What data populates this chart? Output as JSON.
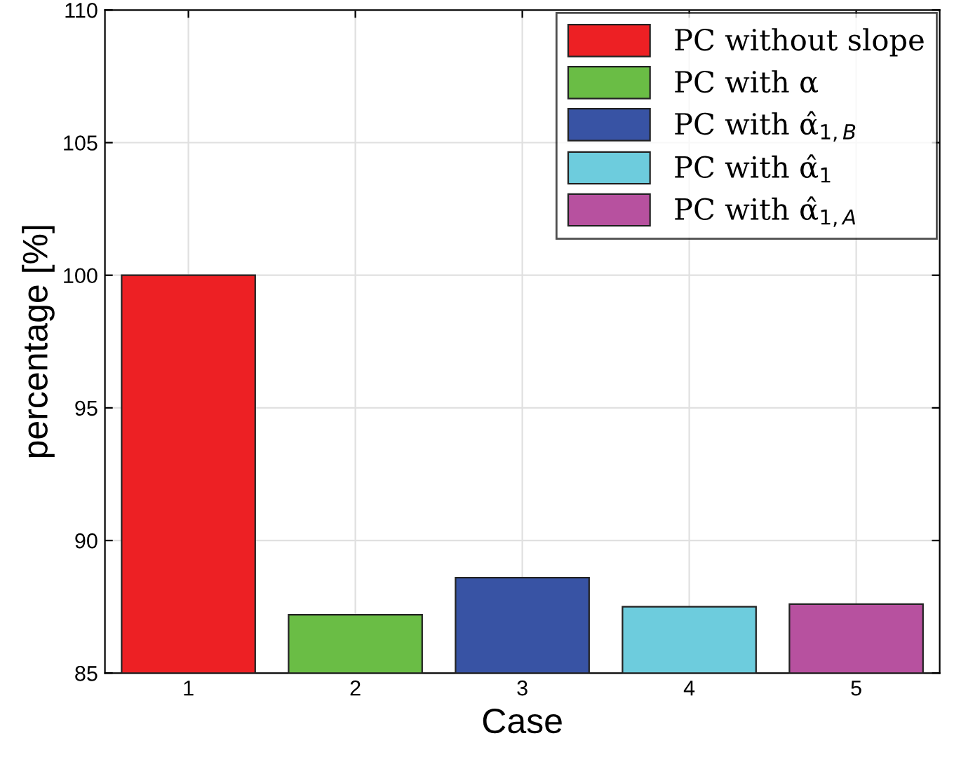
{
  "chart_data": {
    "type": "bar",
    "xlabel": "Case",
    "ylabel": "percentage [%]",
    "categories": [
      "1",
      "2",
      "3",
      "4",
      "5"
    ],
    "series": [
      {
        "name": "PC without slope",
        "color": "#ed2024",
        "values": [
          100,
          null,
          null,
          null,
          null
        ]
      },
      {
        "name": "PC with α",
        "color": "#6abd45",
        "values": [
          null,
          87.2,
          null,
          null,
          null
        ]
      },
      {
        "name": "PC with α̂$_{1,B}$",
        "color": "#3853a4",
        "values": [
          null,
          null,
          88.6,
          null,
          null
        ]
      },
      {
        "name": "PC with α̂$_{1}$",
        "color": "#6dccdd",
        "values": [
          null,
          null,
          null,
          87.5,
          null
        ]
      },
      {
        "name": "PC with α̂$_{1,A}$",
        "color": "#b7519f",
        "values": [
          null,
          null,
          null,
          null,
          87.6
        ]
      }
    ],
    "ylim": [
      85,
      110
    ],
    "yticks": [
      85,
      90,
      95,
      100,
      105,
      110
    ],
    "grid": true,
    "legend": "top right"
  }
}
